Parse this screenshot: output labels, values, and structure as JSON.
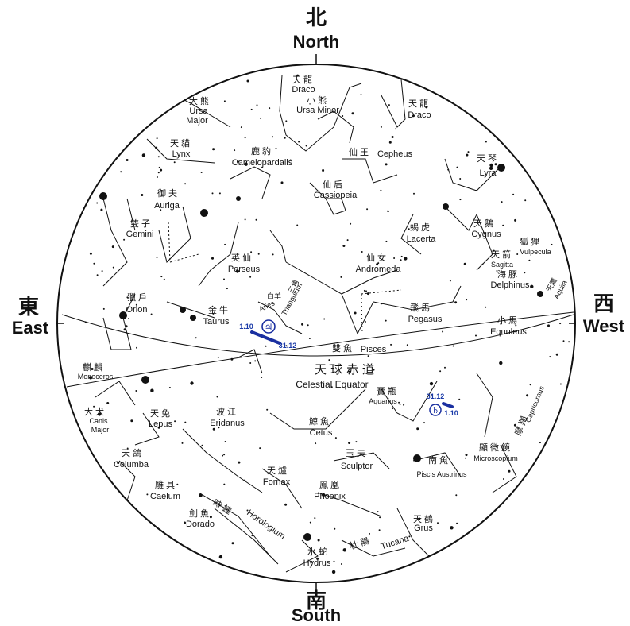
{
  "directions": {
    "north": {
      "zh": "北",
      "en": "North"
    },
    "south": {
      "zh": "南",
      "en": "South"
    },
    "east": {
      "zh": "東",
      "en": "East"
    },
    "west": {
      "zh": "西",
      "en": "West"
    }
  },
  "celestial_equator": {
    "zh": "天球赤道",
    "en": "Celestial Equator"
  },
  "constellations": {
    "draco1": {
      "zh": "天龍",
      "en": "Draco"
    },
    "ursa_minor": {
      "zh": "小熊",
      "en": "Ursa Minor"
    },
    "draco2": {
      "zh": "天龍",
      "en": "Draco"
    },
    "ursa_major": {
      "zh": "大熊",
      "en1": "Ursa",
      "en2": "Major"
    },
    "lynx": {
      "zh": "天貓",
      "en": "Lynx"
    },
    "camelopardalis": {
      "zh": "鹿豹",
      "en": "Camelopardalis"
    },
    "cepheus": {
      "zh": "仙王",
      "en": "Cepheus"
    },
    "lyra": {
      "zh": "天琴",
      "en": "Lyra"
    },
    "auriga": {
      "zh": "御夫",
      "en": "Auriga"
    },
    "cassiopeia": {
      "zh": "仙后",
      "en": "Cassiopeia"
    },
    "gemini": {
      "zh": "雙子",
      "en": "Gemini"
    },
    "lacerta": {
      "zh": "蝎虎",
      "en": "Lacerta"
    },
    "cygnus": {
      "zh": "天鵝",
      "en": "Cygnus"
    },
    "vulpecula": {
      "zh": "狐狸",
      "en": "Vulpecula"
    },
    "sagitta": {
      "zh": "天箭",
      "en": "Sagitta"
    },
    "perseus": {
      "zh": "英仙",
      "en": "Perseus"
    },
    "triangulum": {
      "zh": "三角",
      "en": "Triangulum"
    },
    "andromeda": {
      "zh": "仙女",
      "en": "Andromeda"
    },
    "delphinus": {
      "zh": "海豚",
      "en": "Delphinus"
    },
    "aquila": {
      "zh": "天鷹",
      "en": "Aquila"
    },
    "orion": {
      "zh": "獵戶",
      "en": "Orion"
    },
    "taurus": {
      "zh": "金牛",
      "en": "Taurus"
    },
    "aries": {
      "zh": "白羊",
      "en": "Aries"
    },
    "pegasus": {
      "zh": "飛馬",
      "en": "Pegasus"
    },
    "equuleus": {
      "zh": "小馬",
      "en": "Equuleus"
    },
    "pisces": {
      "zh": "雙魚",
      "en": "Pisces"
    },
    "monoceros": {
      "zh": "麒麟",
      "en": "Monoceros"
    },
    "canis_major": {
      "zh": "大犬",
      "en1": "Canis",
      "en2": "Major"
    },
    "lepus": {
      "zh": "天兔",
      "en": "Lepus"
    },
    "eridanus": {
      "zh": "波江",
      "en": "Eridanus"
    },
    "cetus": {
      "zh": "鯨魚",
      "en": "Cetus"
    },
    "aquarius": {
      "zh": "寶瓶",
      "en": "Aquarius"
    },
    "capricornus": {
      "zh": "摩羯",
      "en": "Capricornus"
    },
    "microscopium": {
      "zh": "顯微鏡",
      "en": "Microscopium"
    },
    "columba": {
      "zh": "天鴿",
      "en": "Columba"
    },
    "sculptor": {
      "zh": "玉夫",
      "en": "Sculptor"
    },
    "piscis_austrinus": {
      "zh": "南魚",
      "en": "Piscis Austrinus"
    },
    "fornax": {
      "zh": "天爐",
      "en": "Fornax"
    },
    "caelum": {
      "zh": "雕具",
      "en": "Caelum"
    },
    "phoenix": {
      "zh": "鳳凰",
      "en": "Phoenix"
    },
    "horologium": {
      "zh": "時鐘",
      "en": "Horologium"
    },
    "dorado": {
      "zh": "劍魚",
      "en": "Dorado"
    },
    "grus": {
      "zh": "天鶴",
      "en": "Grus"
    },
    "tucana": {
      "zh": "杜鵑",
      "en": "Tucana"
    },
    "hydrus": {
      "zh": "水蛇",
      "en": "Hydrus"
    }
  },
  "planets": {
    "jupiter": {
      "symbol": "♃",
      "start": "1.10",
      "end": "31.12"
    },
    "saturn": {
      "symbol": "♄",
      "start": "31.12",
      "end": "1.10"
    }
  },
  "colors": {
    "planet_track": "#1a2fa0",
    "ink": "#111111"
  }
}
